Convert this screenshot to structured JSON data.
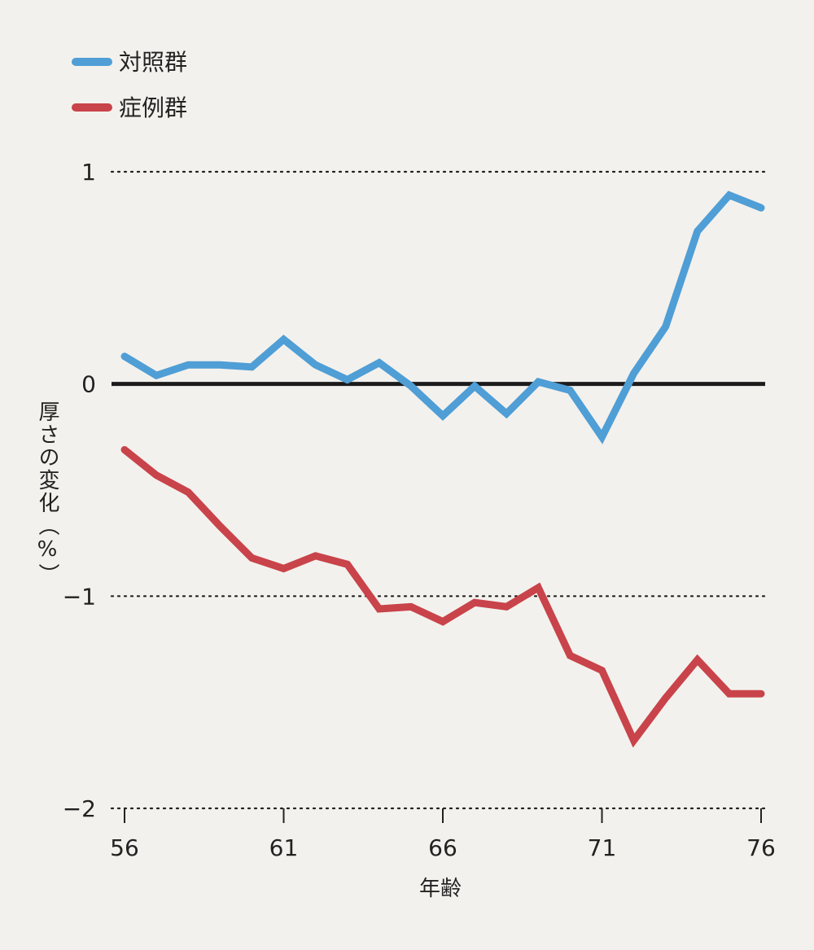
{
  "chart_data": {
    "type": "line",
    "x": [
      56,
      57,
      58,
      59,
      60,
      61,
      62,
      63,
      64,
      65,
      66,
      67,
      68,
      69,
      70,
      71,
      72,
      73,
      74,
      75,
      76
    ],
    "series": [
      {
        "name": "対照群",
        "color": "#4f9ed6",
        "values": [
          0.13,
          0.04,
          0.09,
          0.09,
          0.08,
          0.21,
          0.09,
          0.02,
          0.1,
          -0.01,
          -0.15,
          -0.01,
          -0.14,
          0.01,
          -0.03,
          -0.25,
          0.05,
          0.27,
          0.72,
          0.89,
          0.83
        ]
      },
      {
        "name": "症例群",
        "color": "#c9434a",
        "values": [
          -0.31,
          -0.43,
          -0.51,
          -0.67,
          -0.82,
          -0.87,
          -0.81,
          -0.85,
          -1.06,
          -1.05,
          -1.12,
          -1.03,
          -1.05,
          -0.96,
          -1.28,
          -1.35,
          -1.68,
          -1.48,
          -1.3,
          -1.46,
          -1.46
        ]
      }
    ],
    "xticks": [
      "56",
      "61",
      "66",
      "71",
      "76"
    ],
    "xtick_values": [
      56,
      61,
      66,
      71,
      76
    ],
    "yticks": [
      "1",
      "0",
      "−1",
      "−2"
    ],
    "ytick_values": [
      1,
      0,
      -1,
      -2
    ],
    "xlim": [
      56,
      76
    ],
    "ylim": [
      -2,
      1
    ],
    "xlabel": "年齢",
    "ylabel": "厚さの変化（%）",
    "grid": "dotted horizontal at y ticks",
    "zero_line": true,
    "legend_position": "top-left"
  }
}
